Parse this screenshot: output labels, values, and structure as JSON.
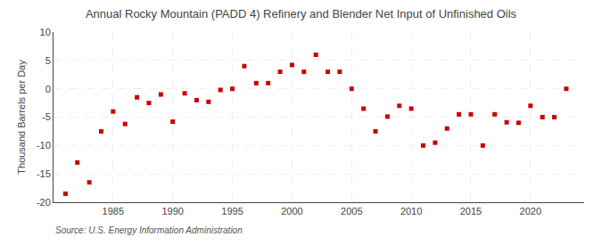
{
  "chart_data": {
    "type": "scatter",
    "title": "Annual Rocky Mountain (PADD 4) Refinery and Blender Net Input of Unfinished Oils",
    "ylabel": "Thousand Barrels per Day",
    "annotations": [
      "Source: U.S. Energy Information Administration"
    ],
    "x": [
      1981,
      1982,
      1983,
      1984,
      1985,
      1986,
      1987,
      1988,
      1989,
      1990,
      1991,
      1992,
      1993,
      1994,
      1995,
      1996,
      1997,
      1998,
      1999,
      2000,
      2001,
      2002,
      2003,
      2004,
      2005,
      2006,
      2007,
      2008,
      2009,
      2010,
      2011,
      2012,
      2013,
      2014,
      2015,
      2016,
      2017,
      2018,
      2019,
      2020,
      2021,
      2022,
      2023
    ],
    "values": [
      -18.5,
      -13.0,
      -16.5,
      -7.5,
      -4.0,
      -6.2,
      -1.5,
      -2.5,
      -1.0,
      -5.8,
      -0.8,
      -2.0,
      -2.3,
      -0.2,
      0.0,
      4.0,
      1.0,
      1.0,
      3.0,
      4.2,
      3.0,
      6.0,
      3.0,
      3.0,
      0.0,
      -3.5,
      -7.5,
      -4.9,
      -3.0,
      -3.5,
      -10.0,
      -9.5,
      -7.0,
      -4.5,
      -4.5,
      -10.0,
      -4.5,
      -5.9,
      -6.0,
      -3.0,
      -5.0,
      -5.0,
      0.0
    ],
    "color": "#cc0000",
    "marker": "square",
    "xlim": [
      1980,
      2024.5
    ],
    "ylim": [
      -20,
      10
    ],
    "xticks": [
      1985,
      1990,
      1995,
      2000,
      2005,
      2010,
      2015,
      2020
    ],
    "yticks": [
      -20,
      -15,
      -10,
      -5,
      0,
      5,
      10
    ],
    "grid": true
  }
}
